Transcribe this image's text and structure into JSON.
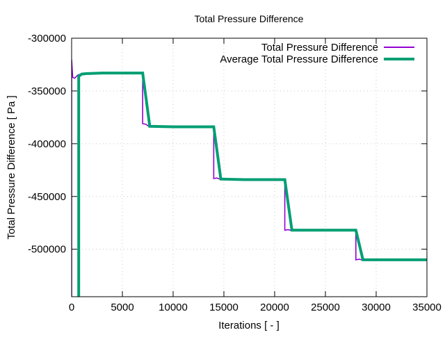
{
  "chart_data": {
    "type": "line",
    "title": "Total Pressure Difference",
    "xlabel": "Iterations [ - ]",
    "ylabel": "Total Pressure Difference [ Pa ]",
    "xlim": [
      0,
      35000
    ],
    "ylim": [
      -545000,
      -300000
    ],
    "xticks": [
      0,
      5000,
      10000,
      15000,
      20000,
      25000,
      30000,
      35000
    ],
    "xtick_labels": [
      "0",
      "5000",
      "10000",
      "15000",
      "20000",
      "25000",
      "30000",
      "35000"
    ],
    "yticks": [
      -300000,
      -350000,
      -400000,
      -450000,
      -500000
    ],
    "ytick_labels": [
      "-300000",
      "-350000",
      "-400000",
      "-450000",
      "-500000"
    ],
    "grid": true,
    "legend_position": "top-right",
    "series": [
      {
        "name": "Total Pressure Difference",
        "color": "#9400d3",
        "x": [
          0,
          0,
          100,
          300,
          600,
          1000,
          3000,
          7000,
          7000,
          7300,
          7600,
          10000,
          14000,
          14000,
          14300,
          14600,
          17000,
          21000,
          21000,
          21300,
          21600,
          24000,
          28000,
          28000,
          28300,
          28600,
          35000
        ],
        "y": [
          -545000,
          -320000,
          -337000,
          -338000,
          -335000,
          -333500,
          -333000,
          -333000,
          -381000,
          -381500,
          -383500,
          -384000,
          -384000,
          -433000,
          -432500,
          -433500,
          -434000,
          -434000,
          -482000,
          -481500,
          -482000,
          -482000,
          -482000,
          -510000,
          -509500,
          -510000,
          -510000
        ]
      },
      {
        "name": "Average Total Pressure Difference",
        "color": "#009e73",
        "x": [
          700,
          700,
          1000,
          1500,
          3000,
          7000,
          7700,
          10000,
          14000,
          14700,
          17000,
          21000,
          21700,
          24000,
          28000,
          28700,
          35000
        ],
        "y": [
          -545000,
          -336000,
          -334000,
          -333500,
          -333000,
          -333000,
          -383500,
          -384000,
          -384000,
          -433500,
          -434000,
          -434000,
          -482000,
          -482000,
          -482000,
          -510000,
          -510000
        ]
      }
    ]
  }
}
